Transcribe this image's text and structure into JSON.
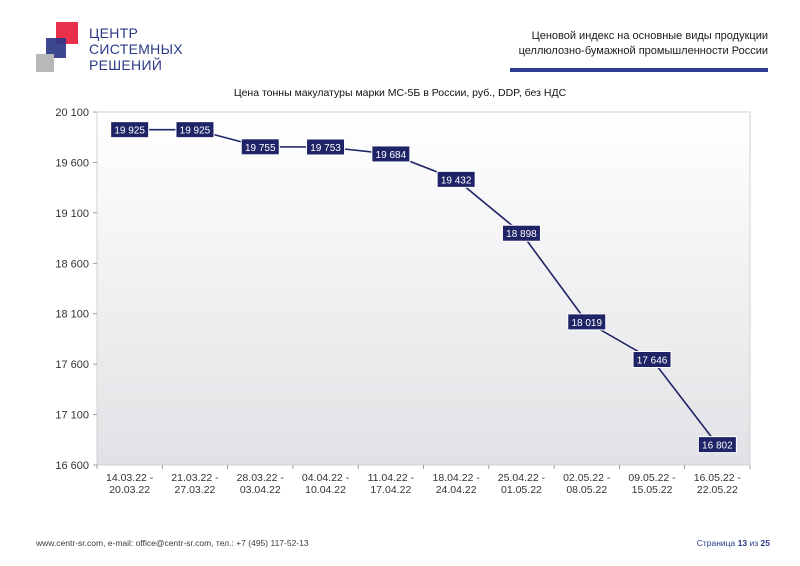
{
  "header": {
    "logo_lines": [
      "ЦЕНТР",
      "СИСТЕМНЫХ",
      "РЕШЕНИЙ"
    ],
    "doc_title_lines": [
      "Ценовой индекс на основные виды продукции",
      "целлюлозно-бумажной промышленности России"
    ]
  },
  "colors": {
    "accent": "#2e3b91",
    "logo_red": "#e8304a",
    "logo_blue": "#2b3a86",
    "logo_gray": "#b8b8b8",
    "label_fill": "#1e2466",
    "line": "#1e2466"
  },
  "chart_data": {
    "type": "line",
    "title": "Цена тонны макулатуры марки МС-5Б в России, руб., DDP, без НДС",
    "categories": [
      [
        "14.03.22 -",
        "20.03.22"
      ],
      [
        "21.03.22 -",
        "27.03.22"
      ],
      [
        "28.03.22 -",
        "03.04.22"
      ],
      [
        "04.04.22 -",
        "10.04.22"
      ],
      [
        "11.04.22 -",
        "17.04.22"
      ],
      [
        "18.04.22 -",
        "24.04.22"
      ],
      [
        "25.04.22 -",
        "01.05.22"
      ],
      [
        "02.05.22 -",
        "08.05.22"
      ],
      [
        "09.05.22 -",
        "15.05.22"
      ],
      [
        "16.05.22 -",
        "22.05.22"
      ]
    ],
    "values": [
      19925,
      19925,
      19755,
      19753,
      19684,
      19432,
      18898,
      18019,
      17646,
      16802
    ],
    "data_labels": [
      "19 925",
      "19 925",
      "19 755",
      "19 753",
      "19 684",
      "19 432",
      "18 898",
      "18 019",
      "17 646",
      "16 802"
    ],
    "ylim": [
      16600,
      20100
    ],
    "yticks": [
      16600,
      17100,
      17600,
      18100,
      18600,
      19100,
      19600,
      20100
    ],
    "ytick_labels": [
      "16 600",
      "17 100",
      "17 600",
      "18 100",
      "18 600",
      "19 100",
      "19 600",
      "20 100"
    ],
    "grid": false,
    "legend": "none"
  },
  "footer": {
    "contacts": "www.centr-sr.com, e-mail: office@centr-sr.com, тел.: +7 (495) 117-52-13",
    "page_prefix": "Страница",
    "page_current": "13",
    "page_sep": "из",
    "page_total": "25"
  }
}
